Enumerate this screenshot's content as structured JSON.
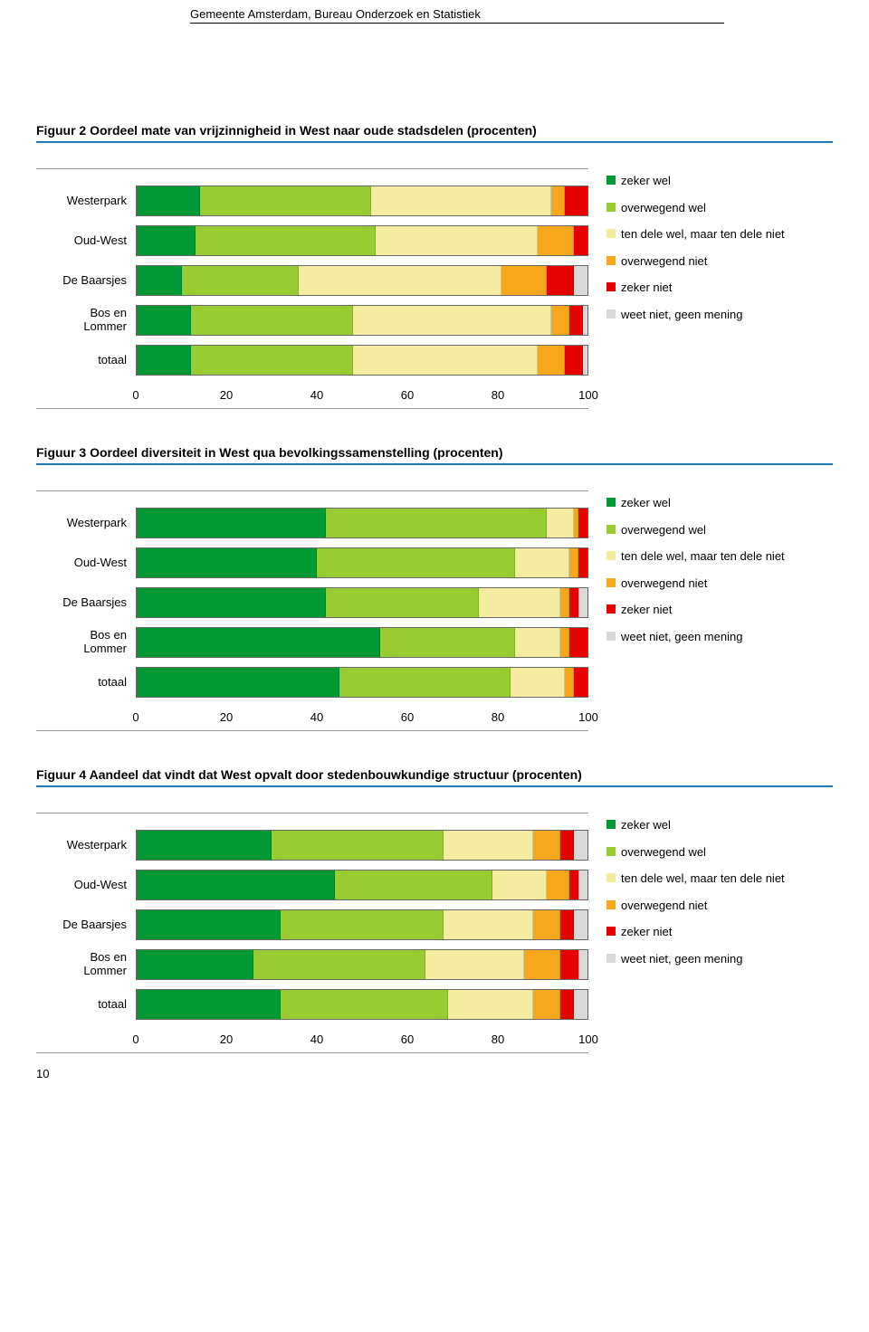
{
  "header": "Gemeente Amsterdam, Bureau Onderzoek en Statistiek",
  "page_number": "10",
  "colors": {
    "zeker_wel": "#009933",
    "overwegend_wel": "#99cc33",
    "ten_dele": "#f5eca1",
    "overwegend_niet": "#f7a71b",
    "zeker_niet": "#e60000",
    "geen_mening": "#d9d9d9",
    "title_rule": "#1f77b4",
    "grid": "#999999",
    "background": "#ffffff"
  },
  "legend_labels": {
    "zeker_wel": "zeker wel",
    "overwegend_wel": "overwegend wel",
    "ten_dele": "ten dele wel, maar ten dele niet",
    "overwegend_niet": "overwegend niet",
    "zeker_niet": "zeker niet",
    "geen_mening": "weet niet, geen mening"
  },
  "axis": {
    "xmin": 0,
    "xmax": 100,
    "ticks": [
      0,
      20,
      40,
      60,
      80,
      100
    ]
  },
  "charts": [
    {
      "title": "Figuur 2  Oordeel mate van vrijzinnigheid in West naar oude stadsdelen (procenten)",
      "categories": [
        "Westerpark",
        "Oud-West",
        "De Baarsjes",
        "Bos en Lommer",
        "totaal"
      ],
      "series_order": [
        "zeker_wel",
        "overwegend_wel",
        "ten_dele",
        "overwegend_niet",
        "zeker_niet",
        "geen_mening"
      ],
      "values": [
        [
          14,
          38,
          40,
          3,
          5,
          0
        ],
        [
          13,
          40,
          36,
          8,
          3,
          0
        ],
        [
          10,
          26,
          45,
          10,
          6,
          3
        ],
        [
          12,
          36,
          44,
          4,
          3,
          1
        ],
        [
          12,
          36,
          41,
          6,
          4,
          1
        ]
      ]
    },
    {
      "title": "Figuur 3  Oordeel diversiteit in West qua bevolkingssamenstelling (procenten)",
      "categories": [
        "Westerpark",
        "Oud-West",
        "De Baarsjes",
        "Bos en Lommer",
        "totaal"
      ],
      "series_order": [
        "zeker_wel",
        "overwegend_wel",
        "ten_dele",
        "overwegend_niet",
        "zeker_niet",
        "geen_mening"
      ],
      "values": [
        [
          42,
          49,
          6,
          1,
          2,
          0
        ],
        [
          40,
          44,
          12,
          2,
          2,
          0
        ],
        [
          42,
          34,
          18,
          2,
          2,
          2
        ],
        [
          54,
          30,
          10,
          2,
          4,
          0
        ],
        [
          45,
          38,
          12,
          2,
          3,
          0
        ]
      ]
    },
    {
      "title": "Figuur 4  Aandeel dat vindt dat West opvalt door stedenbouwkundige structuur (procenten)",
      "categories": [
        "Westerpark",
        "Oud-West",
        "De Baarsjes",
        "Bos en Lommer",
        "totaal"
      ],
      "series_order": [
        "zeker_wel",
        "overwegend_wel",
        "ten_dele",
        "overwegend_niet",
        "zeker_niet",
        "geen_mening"
      ],
      "values": [
        [
          30,
          38,
          20,
          6,
          3,
          3
        ],
        [
          44,
          35,
          12,
          5,
          2,
          2
        ],
        [
          32,
          36,
          20,
          6,
          3,
          3
        ],
        [
          26,
          38,
          22,
          8,
          4,
          2
        ],
        [
          32,
          37,
          19,
          6,
          3,
          3
        ]
      ]
    }
  ]
}
